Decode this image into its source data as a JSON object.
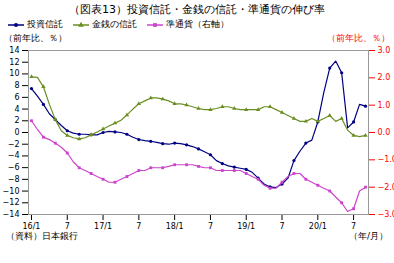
{
  "chart_data": {
    "type": "line",
    "title": "（図表13）投資信託・金銭の信託・準通貨の伸び率",
    "ylabel": "（前年比、％）",
    "y2label": "（前年比、％）",
    "xlabel": "（年/月）",
    "annotations": [
      "（資料）日本銀行"
    ],
    "categories": [
      "16/1",
      null,
      null,
      null,
      null,
      null,
      "7",
      null,
      null,
      null,
      null,
      null,
      "17/1",
      null,
      null,
      null,
      null,
      null,
      "7",
      null,
      null,
      null,
      null,
      null,
      "18/1",
      null,
      null,
      null,
      null,
      null,
      "7",
      null,
      null,
      null,
      null,
      null,
      "19/1",
      null,
      null,
      null,
      null,
      null,
      "7",
      null,
      null,
      null,
      null,
      null,
      "20/1",
      null,
      null,
      null,
      null,
      null,
      "7",
      null,
      null
    ],
    "ylim": [
      -14,
      14
    ],
    "yticks": [
      -14,
      -12,
      -10,
      -8,
      -6,
      -4,
      -2,
      0,
      2,
      4,
      6,
      8,
      10,
      12,
      14
    ],
    "y2lim": [
      -3,
      3
    ],
    "y2ticks": [
      -3,
      -2,
      -1,
      0,
      1,
      2,
      3
    ],
    "grid": false,
    "legend": "upper left",
    "series": [
      {
        "name": "投資信託",
        "color": "#000080",
        "marker": "circle",
        "values": [
          7.5,
          6.2,
          4.8,
          3.2,
          2.2,
          1.2,
          0.3,
          -0.1,
          -0.3,
          -0.3,
          -0.4,
          -0.4,
          0.0,
          0.2,
          0.1,
          0.0,
          -0.3,
          -0.8,
          -1.2,
          -1.4,
          -1.5,
          -1.7,
          -1.9,
          -2.0,
          -1.8,
          -1.9,
          -2.1,
          -2.4,
          -2.8,
          -3.3,
          -3.8,
          -4.8,
          -5.3,
          -5.7,
          -5.9,
          -6.1,
          -6.3,
          -6.8,
          -7.8,
          -8.8,
          -9.3,
          -9.4,
          -8.8,
          -7.8,
          -4.8,
          -3.2,
          -1.8,
          -1.3,
          1.8,
          6.8,
          11.0,
          12.2,
          10.2,
          0.8,
          1.8,
          4.8,
          4.5
        ]
      },
      {
        "name": "金銭の信託",
        "color": "#6B8E23",
        "marker": "triangle",
        "values": [
          9.5,
          9.4,
          7.8,
          4.8,
          2.2,
          0.3,
          -0.5,
          -0.9,
          -1.1,
          -0.9,
          -0.4,
          0.1,
          0.6,
          1.1,
          1.6,
          2.1,
          3.0,
          4.0,
          4.9,
          5.4,
          5.9,
          5.9,
          5.7,
          5.4,
          4.9,
          4.9,
          4.7,
          4.4,
          4.1,
          3.9,
          3.9,
          4.1,
          4.4,
          4.4,
          4.1,
          3.9,
          3.9,
          3.9,
          3.9,
          4.4,
          4.4,
          3.9,
          3.4,
          2.9,
          2.4,
          1.9,
          1.9,
          2.4,
          1.9,
          2.4,
          2.9,
          1.9,
          2.4,
          0.4,
          -0.5,
          -0.7,
          -0.5
        ]
      },
      {
        "name": "準通貨（右軸）",
        "color": "#CC44CC",
        "marker": "square",
        "axis": "y2",
        "values": [
          0.43,
          0.11,
          -0.17,
          -0.26,
          -0.39,
          -0.54,
          -0.75,
          -1.07,
          -1.29,
          -1.39,
          -1.5,
          -1.61,
          -1.71,
          -1.82,
          -1.82,
          -1.71,
          -1.61,
          -1.5,
          -1.39,
          -1.39,
          -1.29,
          -1.29,
          -1.29,
          -1.24,
          -1.18,
          -1.18,
          -1.18,
          -1.18,
          -1.24,
          -1.29,
          -1.29,
          -1.39,
          -1.39,
          -1.39,
          -1.39,
          -1.39,
          -1.5,
          -1.61,
          -1.71,
          -1.93,
          -2.04,
          -2.04,
          -1.82,
          -1.61,
          -1.5,
          -1.5,
          -1.71,
          -1.82,
          -1.93,
          -2.04,
          -2.14,
          -2.36,
          -2.57,
          -2.89,
          -2.79,
          -2.14,
          -2.0
        ]
      }
    ]
  }
}
